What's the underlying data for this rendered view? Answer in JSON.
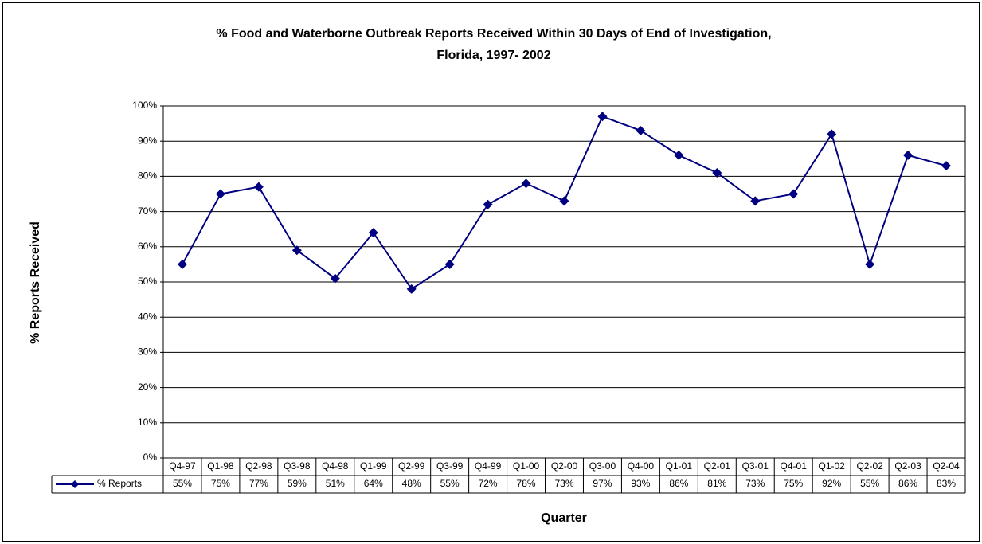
{
  "chart_data": {
    "type": "line",
    "title": [
      "% Food and Waterborne Outbreak Reports Received Within 30 Days of End of Investigation,",
      "Florida, 1997- 2002"
    ],
    "y_label": "% Reports Received",
    "x_label": "Quarter",
    "categories": [
      "Q4-97",
      "Q1-98",
      "Q2-98",
      "Q3-98",
      "Q4-98",
      "Q1-99",
      "Q2-99",
      "Q3-99",
      "Q4-99",
      "Q1-00",
      "Q2-00",
      "Q3-00",
      "Q4-00",
      "Q1-01",
      "Q2-01",
      "Q3-01",
      "Q4-01",
      "Q1-02",
      "Q2-02",
      "Q2-03",
      "Q2-04"
    ],
    "series": [
      {
        "name": "% Reports",
        "color": "#000080",
        "values": [
          55,
          75,
          77,
          59,
          51,
          64,
          48,
          55,
          72,
          78,
          73,
          97,
          93,
          86,
          81,
          73,
          75,
          92,
          55,
          86,
          83
        ],
        "value_labels": [
          "55%",
          "75%",
          "77%",
          "59%",
          "51%",
          "64%",
          "48%",
          "55%",
          "72%",
          "78%",
          "73%",
          "97%",
          "93%",
          "86%",
          "81%",
          "73%",
          "75%",
          "92%",
          "55%",
          "86%",
          "83%"
        ]
      }
    ],
    "ylim": [
      0,
      100
    ],
    "yticks": [
      {
        "value": 0,
        "label": "0%"
      },
      {
        "value": 10,
        "label": "10%"
      },
      {
        "value": 20,
        "label": "20%"
      },
      {
        "value": 30,
        "label": "30%"
      },
      {
        "value": 40,
        "label": "40%"
      },
      {
        "value": 50,
        "label": "50%"
      },
      {
        "value": 60,
        "label": "60%"
      },
      {
        "value": 70,
        "label": "70%"
      },
      {
        "value": 80,
        "label": "80%"
      },
      {
        "value": 90,
        "label": "90%"
      },
      {
        "value": 100,
        "label": "100%"
      }
    ],
    "grid": true
  }
}
